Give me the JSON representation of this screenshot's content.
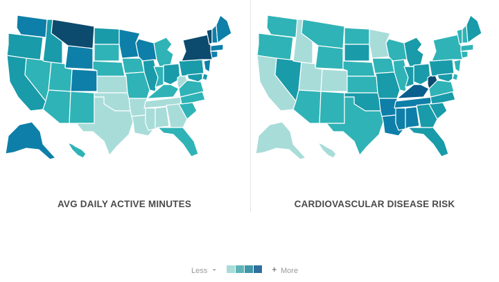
{
  "palette": [
    "#a8dcd9",
    "#2fb3b6",
    "#199ba9",
    "#0e7fa8",
    "#0a5f8f",
    "#0c4a6e"
  ],
  "maps": [
    {
      "title": "AVG DAILY ACTIVE MINUTES",
      "levels": {
        "WA": 3,
        "OR": 2,
        "CA": 2,
        "NV": 1,
        "ID": 2,
        "MT": 5,
        "WY": 3,
        "UT": 1,
        "CO": 3,
        "AZ": 1,
        "NM": 1,
        "ND": 2,
        "SD": 1,
        "NE": 1,
        "KS": 0,
        "OK": 0,
        "TX": 0,
        "MN": 3,
        "IA": 1,
        "MO": 1,
        "AR": 0,
        "LA": 0,
        "WI": 3,
        "IL": 2,
        "MI": 1,
        "IN": 1,
        "OH": 2,
        "KY": 1,
        "TN": 0,
        "MS": 0,
        "AL": 0,
        "GA": 0,
        "FL": 1,
        "SC": 1,
        "NC": 1,
        "VA": 1,
        "WV": 0,
        "PA": 2,
        "NY": 5,
        "VT": 5,
        "NH": 3,
        "ME": 3,
        "MA": 3,
        "CT": 3,
        "NJ": 3,
        "DE": 2,
        "MD": 2,
        "AK": 3,
        "HI": 1
      }
    },
    {
      "title": "CARDIOVASCULAR DISEASE RISK",
      "levels": {
        "WA": 1,
        "OR": 1,
        "CA": 0,
        "NV": 2,
        "ID": 0,
        "MT": 1,
        "WY": 1,
        "UT": 0,
        "CO": 0,
        "AZ": 1,
        "NM": 1,
        "ND": 1,
        "SD": 2,
        "NE": 1,
        "KS": 1,
        "OK": 2,
        "TX": 1,
        "MN": 0,
        "IA": 1,
        "MO": 2,
        "AR": 3,
        "LA": 3,
        "WI": 1,
        "IL": 1,
        "MI": 2,
        "IN": 2,
        "OH": 2,
        "KY": 4,
        "TN": 3,
        "MS": 3,
        "AL": 3,
        "GA": 2,
        "FL": 2,
        "SC": 2,
        "NC": 2,
        "VA": 1,
        "WV": 5,
        "PA": 2,
        "NY": 1,
        "VT": 1,
        "NH": 1,
        "ME": 2,
        "MA": 1,
        "CT": 1,
        "NJ": 1,
        "DE": 1,
        "MD": 2,
        "AK": 0,
        "HI": 0
      }
    }
  ],
  "legend": {
    "less": "Less",
    "minus": "-",
    "plus": "+",
    "more": "More",
    "swatches": [
      "#a8dcd9",
      "#5fb4b7",
      "#3f97a7",
      "#2f6e9e"
    ]
  }
}
